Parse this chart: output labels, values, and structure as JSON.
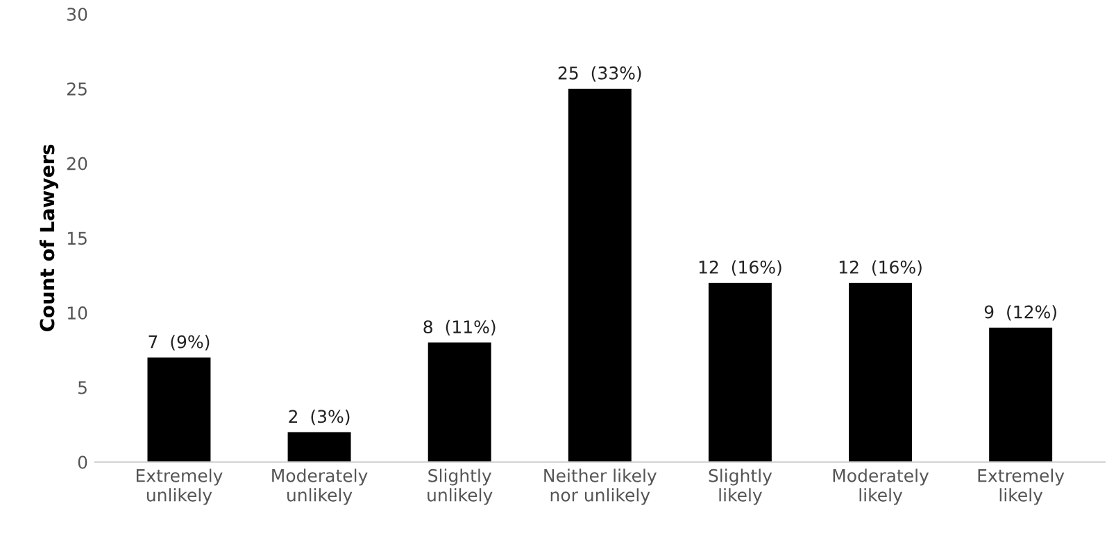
{
  "chart_data": {
    "type": "bar",
    "ylabel": "Count of Lawyers",
    "categories": [
      "Extremely unlikely",
      "Moderately unlikely",
      "Slightly unlikely",
      "Neither likely nor unlikely",
      "Slightly likely",
      "Moderately likely",
      "Extremely likely"
    ],
    "values": [
      7,
      2,
      8,
      25,
      12,
      12,
      9
    ],
    "value_labels": [
      "7  (9%)",
      "2  (3%)",
      "8  (11%)",
      "25  (33%)",
      "12  (16%)",
      "12  (16%)",
      "9  (12%)"
    ],
    "color": "#000000",
    "ylim": [
      0,
      30
    ],
    "yticks": [
      0,
      5,
      10,
      15,
      20,
      25,
      30
    ],
    "grid": false,
    "legend": false
  }
}
